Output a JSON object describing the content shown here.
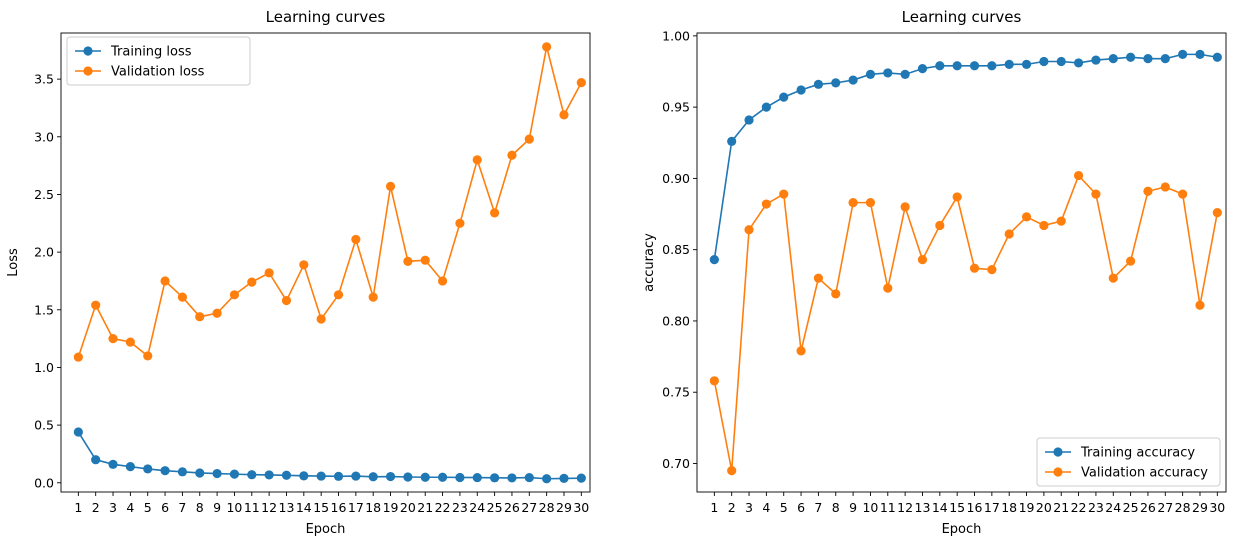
{
  "chart_data": [
    {
      "type": "line",
      "title": "Learning curves",
      "xlabel": "Epoch",
      "ylabel": "Loss",
      "x": [
        1,
        2,
        3,
        4,
        5,
        6,
        7,
        8,
        9,
        10,
        11,
        12,
        13,
        14,
        15,
        16,
        17,
        18,
        19,
        20,
        21,
        22,
        23,
        24,
        25,
        26,
        27,
        28,
        29,
        30
      ],
      "ylim": [
        -0.08,
        3.9
      ],
      "yticks": [
        0.0,
        0.5,
        1.0,
        1.5,
        2.0,
        2.5,
        3.0,
        3.5
      ],
      "yticklabels": [
        "0.0",
        "0.5",
        "1.0",
        "1.5",
        "2.0",
        "2.5",
        "3.0",
        "3.5"
      ],
      "grid": false,
      "legend_position": "top-left",
      "series": [
        {
          "name": "Training loss",
          "color": "#1f77b4",
          "values": [
            0.44,
            0.2,
            0.16,
            0.14,
            0.12,
            0.105,
            0.095,
            0.085,
            0.08,
            0.075,
            0.07,
            0.068,
            0.065,
            0.06,
            0.058,
            0.056,
            0.058,
            0.052,
            0.054,
            0.05,
            0.048,
            0.048,
            0.046,
            0.045,
            0.043,
            0.042,
            0.045,
            0.035,
            0.038,
            0.04
          ]
        },
        {
          "name": "Validation loss",
          "color": "#ff7f0e",
          "values": [
            1.09,
            1.54,
            1.25,
            1.22,
            1.1,
            1.75,
            1.61,
            1.44,
            1.47,
            1.63,
            1.74,
            1.82,
            1.58,
            1.89,
            1.42,
            1.63,
            2.11,
            1.61,
            2.57,
            1.92,
            1.93,
            1.75,
            2.25,
            2.8,
            2.34,
            2.84,
            2.98,
            3.78,
            3.19,
            3.47
          ]
        }
      ]
    },
    {
      "type": "line",
      "title": "Learning curves",
      "xlabel": "Epoch",
      "ylabel": "accuracy",
      "x": [
        1,
        2,
        3,
        4,
        5,
        6,
        7,
        8,
        9,
        10,
        11,
        12,
        13,
        14,
        15,
        16,
        17,
        18,
        19,
        20,
        21,
        22,
        23,
        24,
        25,
        26,
        27,
        28,
        29,
        30
      ],
      "ylim": [
        0.68,
        1.002
      ],
      "yticks": [
        0.7,
        0.75,
        0.8,
        0.85,
        0.9,
        0.95,
        1.0
      ],
      "yticklabels": [
        "0.70",
        "0.75",
        "0.80",
        "0.85",
        "0.90",
        "0.95",
        "1.00"
      ],
      "grid": false,
      "legend_position": "bottom-right",
      "series": [
        {
          "name": "Training accuracy",
          "color": "#1f77b4",
          "values": [
            0.843,
            0.926,
            0.941,
            0.95,
            0.957,
            0.962,
            0.966,
            0.967,
            0.969,
            0.973,
            0.974,
            0.973,
            0.977,
            0.979,
            0.979,
            0.979,
            0.979,
            0.98,
            0.98,
            0.982,
            0.982,
            0.981,
            0.983,
            0.984,
            0.985,
            0.984,
            0.984,
            0.987,
            0.987,
            0.985
          ]
        },
        {
          "name": "Validation accuracy",
          "color": "#ff7f0e",
          "values": [
            0.758,
            0.695,
            0.864,
            0.882,
            0.889,
            0.779,
            0.83,
            0.819,
            0.883,
            0.883,
            0.823,
            0.88,
            0.843,
            0.867,
            0.887,
            0.837,
            0.836,
            0.861,
            0.873,
            0.867,
            0.87,
            0.902,
            0.889,
            0.83,
            0.842,
            0.891,
            0.894,
            0.889,
            0.811,
            0.876
          ]
        }
      ]
    }
  ]
}
